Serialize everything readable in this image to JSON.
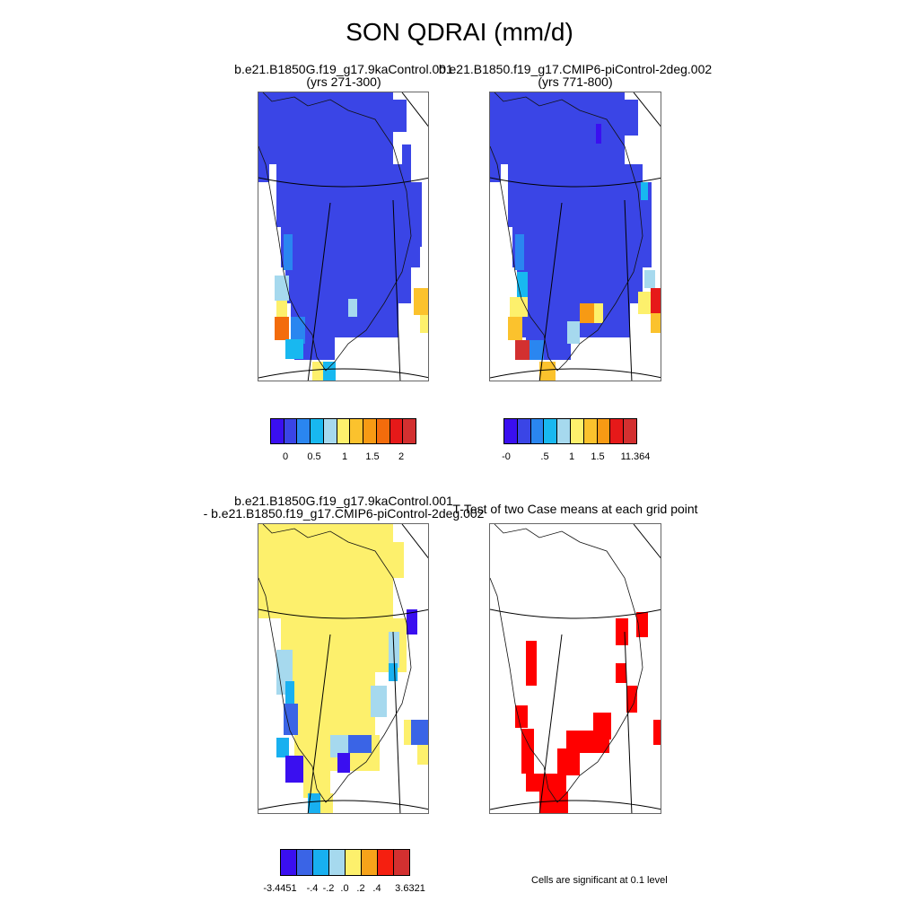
{
  "title": "SON QDRAI (mm/d)",
  "panels": [
    {
      "title_line1": "b.e21.B1850G.f19_g17.9kaControl.001",
      "title_line2": "(yrs 271-300)"
    },
    {
      "title_line1": "b.e21.B1850.f19_g17.CMIP6-piControl-2deg.002",
      "title_line2": "(yrs 771-800)"
    },
    {
      "title_line1": "b.e21.B1850G.f19_g17.9kaControl.001",
      "title_line2": "- b.e21.B1850.f19_g17.CMIP6-piControl-2deg.002"
    },
    {
      "title_line1": "T-Test of two Case means at each grid point",
      "title_line2": ""
    }
  ],
  "colorbars": [
    {
      "colors": [
        "#3a0ff0",
        "#3a45e6",
        "#2a86f0",
        "#18b8f0",
        "#a6d9ee",
        "#fdf06c",
        "#fbc22d",
        "#f79a14",
        "#f36c0c",
        "#e61919",
        "#d33030"
      ],
      "ticks": [
        "0",
        "0.5",
        "1",
        "1.5",
        "2"
      ]
    },
    {
      "colors": [
        "#3a0ff0",
        "#3a45e6",
        "#2a86f0",
        "#18b8f0",
        "#a6d9ee",
        "#fdf06c",
        "#fbc22d",
        "#f79a14",
        "#e61919",
        "#d33030"
      ],
      "ticks": [
        "-0",
        ".5",
        "1",
        "1.5",
        "11.364"
      ]
    },
    {
      "colors": [
        "#3a0ff0",
        "#3a64e6",
        "#18b0f0",
        "#a6d9ee",
        "#fdf06c",
        "#f7a31a",
        "#f51f10",
        "#d33030"
      ],
      "ticks": [
        "-3.4451",
        "-.4",
        "-.2",
        ".0",
        ".2",
        ".4",
        "3.6321"
      ]
    }
  ],
  "note": "Cells are significant at 0.1 level",
  "chart_data": {
    "type": "heatmap",
    "title": "SON QDRAI (mm/d)",
    "variable": "QDRAI",
    "units": "mm/d",
    "region": "Greenland",
    "panels": [
      {
        "name": "b.e21.B1850G.f19_g17.9kaControl.001 (yrs 271-300)",
        "levels": [
          0,
          0.5,
          1,
          1.5,
          2
        ],
        "dominant_value": "below 0.25 over interior; 1-2 along southwest coast"
      },
      {
        "name": "b.e21.B1850.f19_g17.CMIP6-piControl-2deg.002 (yrs 771-800)",
        "levels": [
          0,
          0.5,
          1,
          1.5,
          11.364
        ],
        "dominant_value": "below 0.25 over interior; 1-11 along southwest and southeast coast"
      },
      {
        "name": "difference",
        "levels": [
          -3.4451,
          -0.4,
          -0.2,
          0.0,
          0.2,
          0.4,
          3.6321
        ],
        "dominant_value": "0.0 to 0.2 over most of the ice sheet; negative along margins"
      },
      {
        "name": "T-Test significance",
        "levels": [
          "significant at 0.1"
        ],
        "dominant_value": "significant cells along west and south margins"
      }
    ]
  }
}
